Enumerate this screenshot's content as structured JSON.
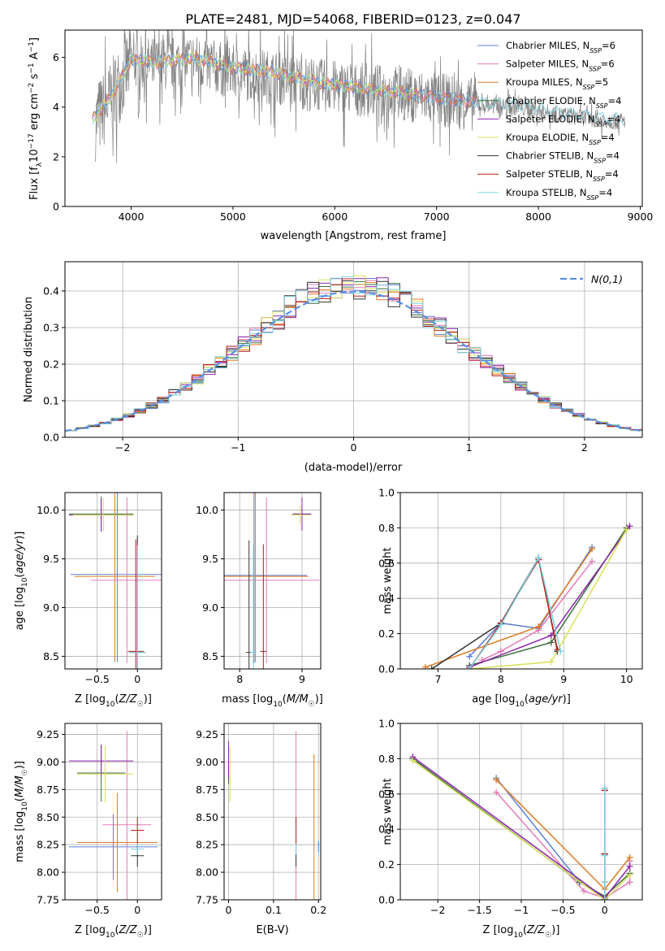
{
  "figure_title": "PLATE=2481, MJD=54068, FIBERID=0123, z=0.047",
  "colors": {
    "Chabrier MILES": "#5b7fd6",
    "Salpeter MILES": "#e47bb6",
    "Kroupa MILES": "#e07b22",
    "Chabrier ELODIE": "#3a6e3a",
    "Salpeter ELODIE": "#8e24aa",
    "Kroupa ELODIE": "#d8e05a",
    "Chabrier STELIB": "#333333",
    "Salpeter STELIB": "#b71c1c",
    "Kroupa STELIB": "#7dd3e0",
    "data": "#808080"
  },
  "legend_names": [
    "Chabrier MILES",
    "Salpeter MILES",
    "Kroupa MILES",
    "Chabrier ELODIE",
    "Salpeter ELODIE",
    "Kroupa ELODIE",
    "Chabrier STELIB",
    "Salpeter STELIB",
    "Kroupa STELIB"
  ],
  "legend_nssp": [
    "6",
    "6",
    "5",
    "4",
    "4",
    "4",
    "4",
    "4",
    "4"
  ],
  "chart_data": [
    {
      "type": "line",
      "panel": "spectrum",
      "xlabel": "wavelength [Angstrom, rest frame]",
      "ylabel": "Flux [f_λ 10^-17 erg cm^-2 s^-1 A^-1]",
      "xlim": [
        3350,
        9020
      ],
      "ylim": [
        0,
        7.1
      ],
      "xticks": [
        4000,
        5000,
        6000,
        7000,
        8000,
        9000
      ],
      "yticks": [
        0,
        2,
        4,
        6
      ],
      "legend_location": "right",
      "series": [
        {
          "name": "data",
          "x": [
            3650,
            3800,
            4000,
            4300,
            4600,
            5000,
            5400,
            5800,
            6200,
            6600,
            7000,
            7400,
            7800,
            8200,
            8600,
            8850
          ],
          "y": [
            3.4,
            4.3,
            5.8,
            5.7,
            5.9,
            5.4,
            5.2,
            4.9,
            4.7,
            4.6,
            4.3,
            4.1,
            4.0,
            3.7,
            3.5,
            3.4
          ]
        },
        {
          "name": "model",
          "x": [
            3620,
            3800,
            4000,
            4300,
            4600,
            5000,
            5400,
            5800,
            6200,
            6600,
            7000,
            7400,
            7800,
            8200,
            8600,
            8850
          ],
          "y": [
            3.5,
            4.4,
            5.9,
            5.8,
            6.0,
            5.6,
            5.4,
            5.0,
            4.8,
            4.6,
            4.4,
            4.2,
            4.1,
            3.8,
            3.6,
            3.5
          ]
        }
      ]
    },
    {
      "type": "line",
      "panel": "residuals",
      "xlabel": "(data-model)/error",
      "ylabel": "Normed distribution",
      "xlim": [
        -2.5,
        2.5
      ],
      "ylim": [
        0,
        0.48
      ],
      "xticks": [
        -2,
        -1,
        0,
        1,
        2
      ],
      "yticks": [
        0.0,
        0.1,
        0.2,
        0.3,
        0.4
      ],
      "legend_location": "upper right",
      "reference_label": "N(0,1)",
      "bin_width": 0.1
    },
    {
      "type": "scatter",
      "panel": "age-vs-Z",
      "xlabel": "Z [log10(Z/Z☉)]",
      "ylabel": "age [log10(age/yr)]",
      "xlim": [
        -0.9,
        0.3
      ],
      "ylim": [
        8.37,
        10.18
      ],
      "xticks": [
        -0.5,
        0.0
      ],
      "yticks": [
        8.5,
        9.0,
        9.5,
        10.0
      ],
      "points": [
        {
          "series": "Chabrier MILES",
          "x": -0.25,
          "y": 9.34,
          "xerr": 0.58,
          "yerr": 0.9
        },
        {
          "series": "Salpeter MILES",
          "x": -0.13,
          "y": 9.28,
          "xerr": 0.45,
          "yerr": 0.85
        },
        {
          "series": "Kroupa MILES",
          "x": -0.28,
          "y": 9.32,
          "xerr": 0.5,
          "yerr": 0.88
        },
        {
          "series": "Chabrier ELODIE",
          "x": -0.45,
          "y": 9.96,
          "xerr": 0.4,
          "yerr": 0.18
        },
        {
          "series": "Salpeter ELODIE",
          "x": -0.45,
          "y": 9.95,
          "xerr": 0.4,
          "yerr": 0.17
        },
        {
          "series": "Kroupa ELODIE",
          "x": -0.42,
          "y": 9.95,
          "xerr": 0.38,
          "yerr": 0.17
        },
        {
          "series": "Chabrier STELIB",
          "x": 0.0,
          "y": 8.54,
          "xerr": 0.1,
          "yerr": 1.2
        },
        {
          "series": "Salpeter STELIB",
          "x": -0.02,
          "y": 8.55,
          "xerr": 0.1,
          "yerr": 1.15
        },
        {
          "series": "Kroupa STELIB",
          "x": 0.0,
          "y": 8.54,
          "xerr": 0.1,
          "yerr": 1.1
        }
      ]
    },
    {
      "type": "scatter",
      "panel": "age-vs-mass",
      "xlabel": "mass [log10(M/M☉)]",
      "ylabel": "",
      "xlim": [
        7.75,
        9.3
      ],
      "ylim": [
        8.37,
        10.18
      ],
      "xticks": [
        8,
        9
      ],
      "yticks": [
        8.5,
        9.0,
        9.5,
        10.0
      ],
      "points": [
        {
          "series": "Chabrier MILES",
          "x": 8.23,
          "y": 9.33,
          "xerr": 0.85,
          "yerr": 0.9
        },
        {
          "series": "Salpeter MILES",
          "x": 8.43,
          "y": 9.28,
          "xerr": 0.85,
          "yerr": 0.85
        },
        {
          "series": "Kroupa MILES",
          "x": 8.25,
          "y": 9.32,
          "xerr": 0.85,
          "yerr": 0.88
        },
        {
          "series": "Chabrier ELODIE",
          "x": 9.0,
          "y": 9.96,
          "xerr": 0.15,
          "yerr": 0.1
        },
        {
          "series": "Salpeter ELODIE",
          "x": 9.0,
          "y": 9.96,
          "xerr": 0.15,
          "yerr": 0.17
        },
        {
          "series": "Kroupa ELODIE",
          "x": 8.97,
          "y": 9.95,
          "xerr": 0.15,
          "yerr": 0.1
        },
        {
          "series": "Chabrier STELIB",
          "x": 8.15,
          "y": 8.54,
          "xerr": 0.05,
          "yerr": 1.15
        },
        {
          "series": "Salpeter STELIB",
          "x": 8.38,
          "y": 8.55,
          "xerr": 0.05,
          "yerr": 1.1
        },
        {
          "series": "Kroupa STELIB",
          "x": 8.22,
          "y": 8.54,
          "xerr": 0.05,
          "yerr": 1.1
        }
      ]
    },
    {
      "type": "line",
      "panel": "mass-weight-vs-age",
      "xlabel": "age [log10(age/yr)]",
      "ylabel": "mass weight",
      "xlim": [
        6.4,
        10.25
      ],
      "ylim": [
        0,
        1.0
      ],
      "xticks": [
        7,
        8,
        9,
        10
      ],
      "yticks": [
        0.0,
        0.2,
        0.4,
        0.6,
        0.8,
        1.0
      ],
      "series": [
        {
          "name": "Chabrier MILES",
          "x": [
            7.5,
            8.0,
            8.6,
            9.45
          ],
          "y": [
            0.07,
            0.26,
            0.23,
            0.69
          ]
        },
        {
          "name": "Salpeter MILES",
          "x": [
            7.7,
            8.0,
            8.6,
            9.45
          ],
          "y": [
            0.05,
            0.1,
            0.22,
            0.61
          ]
        },
        {
          "name": "Kroupa MILES",
          "x": [
            6.8,
            8.6,
            9.45
          ],
          "y": [
            0.01,
            0.24,
            0.68
          ]
        },
        {
          "name": "Chabrier ELODIE",
          "x": [
            7.5,
            8.8,
            10.0
          ],
          "y": [
            0.02,
            0.15,
            0.8
          ]
        },
        {
          "name": "Salpeter ELODIE",
          "x": [
            7.5,
            8.8,
            10.05
          ],
          "y": [
            0.01,
            0.19,
            0.81
          ]
        },
        {
          "name": "Kroupa ELODIE",
          "x": [
            7.5,
            8.8,
            10.0
          ],
          "y": [
            0.0,
            0.04,
            0.79
          ]
        },
        {
          "name": "Chabrier STELIB",
          "x": [
            6.9,
            8.0,
            8.6,
            8.9
          ],
          "y": [
            0.0,
            0.26,
            0.63,
            0.1
          ]
        },
        {
          "name": "Salpeter STELIB",
          "x": [
            7.5,
            8.0,
            8.6,
            8.9
          ],
          "y": [
            0.0,
            0.26,
            0.62,
            0.11
          ]
        },
        {
          "name": "Kroupa STELIB",
          "x": [
            7.5,
            8.0,
            8.6,
            8.95
          ],
          "y": [
            0.0,
            0.25,
            0.63,
            0.1
          ]
        }
      ]
    },
    {
      "type": "scatter",
      "panel": "mass-vs-Z",
      "xlabel": "Z [log10(Z/Z☉)]",
      "ylabel": "mass [log10(M/M☉)]",
      "xlim": [
        -0.9,
        0.3
      ],
      "ylim": [
        7.75,
        9.35
      ],
      "xticks": [
        -0.5,
        0.0
      ],
      "yticks": [
        7.75,
        8.0,
        8.25,
        8.5,
        8.75,
        9.0,
        9.25
      ],
      "points": [
        {
          "series": "Chabrier MILES",
          "x": -0.3,
          "y": 8.23,
          "xerr": 0.55,
          "yerr": 0.3
        },
        {
          "series": "Salpeter MILES",
          "x": -0.13,
          "y": 8.43,
          "xerr": 0.3,
          "yerr": 0.85
        },
        {
          "series": "Kroupa MILES",
          "x": -0.25,
          "y": 8.27,
          "xerr": 0.5,
          "yerr": 0.45
        },
        {
          "series": "Chabrier ELODIE",
          "x": -0.45,
          "y": 8.9,
          "xerr": 0.3,
          "yerr": 0.26
        },
        {
          "series": "Salpeter ELODIE",
          "x": -0.45,
          "y": 9.01,
          "xerr": 0.4,
          "yerr": 0.14
        },
        {
          "series": "Kroupa ELODIE",
          "x": -0.4,
          "y": 8.89,
          "xerr": 0.35,
          "yerr": 0.26
        },
        {
          "series": "Chabrier STELIB",
          "x": 0.0,
          "y": 8.15,
          "xerr": 0.08,
          "yerr": 0.1
        },
        {
          "series": "Salpeter STELIB",
          "x": 0.0,
          "y": 8.38,
          "xerr": 0.08,
          "yerr": 0.12
        },
        {
          "series": "Kroupa STELIB",
          "x": 0.0,
          "y": 8.21,
          "xerr": 0.08,
          "yerr": 0.05
        }
      ]
    },
    {
      "type": "scatter",
      "panel": "mass-vs-EBV",
      "xlabel": "E(B-V)",
      "ylabel": "",
      "xlim": [
        -0.01,
        0.205
      ],
      "ylim": [
        7.75,
        9.35
      ],
      "xticks": [
        0.0,
        0.1,
        0.2
      ],
      "yticks": [
        7.75,
        8.0,
        8.25,
        8.5,
        8.75,
        9.0,
        9.25
      ],
      "points": [
        {
          "series": "Chabrier MILES",
          "x": 0.2,
          "y": 8.23,
          "yerr": 0.05
        },
        {
          "series": "Salpeter MILES",
          "x": 0.15,
          "y": 8.43,
          "yerr": 0.85
        },
        {
          "series": "Kroupa MILES",
          "x": 0.19,
          "y": 8.27,
          "yerr": 0.8
        },
        {
          "series": "Chabrier ELODIE",
          "x": 0.0,
          "y": 8.9,
          "yerr": 0.1
        },
        {
          "series": "Salpeter ELODIE",
          "x": 0.0,
          "y": 9.01,
          "yerr": 0.18
        },
        {
          "series": "Kroupa ELODIE",
          "x": 0.003,
          "y": 8.89,
          "yerr": 0.25
        },
        {
          "series": "Chabrier STELIB",
          "x": 0.15,
          "y": 8.15,
          "yerr": 0.1
        },
        {
          "series": "Salpeter STELIB",
          "x": 0.15,
          "y": 8.38,
          "yerr": 0.12
        },
        {
          "series": "Kroupa STELIB",
          "x": 0.15,
          "y": 8.21,
          "yerr": 0.05
        }
      ]
    },
    {
      "type": "line",
      "panel": "mass-weight-vs-Z",
      "xlabel": "Z [log10(Z/Z☉)]",
      "ylabel": "mass weight",
      "xlim": [
        -2.45,
        0.45
      ],
      "ylim": [
        0,
        1.0
      ],
      "xticks": [
        -2.0,
        -1.5,
        -1.0,
        -0.5,
        0.0
      ],
      "yticks": [
        0.0,
        0.2,
        0.4,
        0.6,
        0.8,
        1.0
      ],
      "series": [
        {
          "name": "Chabrier MILES",
          "x": [
            -1.3,
            -0.3,
            0.0,
            0.0
          ],
          "y": [
            0.69,
            0.1,
            0.01,
            0.26
          ]
        },
        {
          "name": "Salpeter MILES",
          "x": [
            -1.3,
            -0.25,
            0.0,
            0.3,
            0.3
          ],
          "y": [
            0.61,
            0.05,
            0.01,
            0.1,
            0.22
          ]
        },
        {
          "name": "Kroupa MILES",
          "x": [
            -1.3,
            0.0,
            0.3
          ],
          "y": [
            0.68,
            0.06,
            0.24
          ]
        },
        {
          "name": "Chabrier ELODIE",
          "x": [
            -2.3,
            -0.3,
            0.0,
            0.3
          ],
          "y": [
            0.8,
            0.1,
            0.02,
            0.15
          ]
        },
        {
          "name": "Salpeter ELODIE",
          "x": [
            -2.3,
            0.0,
            0.3
          ],
          "y": [
            0.81,
            0.01,
            0.19
          ]
        },
        {
          "name": "Kroupa ELODIE",
          "x": [
            -2.3,
            0.0,
            0.3
          ],
          "y": [
            0.79,
            0.0,
            0.14
          ]
        },
        {
          "name": "Chabrier STELIB",
          "x": [
            0.0,
            0.0,
            0.0,
            0.0
          ],
          "y": [
            0.0,
            0.26,
            0.63,
            0.1
          ]
        },
        {
          "name": "Salpeter STELIB",
          "x": [
            0.0,
            0.0,
            0.0
          ],
          "y": [
            0.0,
            0.26,
            0.62
          ]
        },
        {
          "name": "Kroupa STELIB",
          "x": [
            0.0,
            0.0,
            0.0,
            0.0
          ],
          "y": [
            0.0,
            0.25,
            0.63,
            0.1
          ]
        }
      ]
    }
  ]
}
